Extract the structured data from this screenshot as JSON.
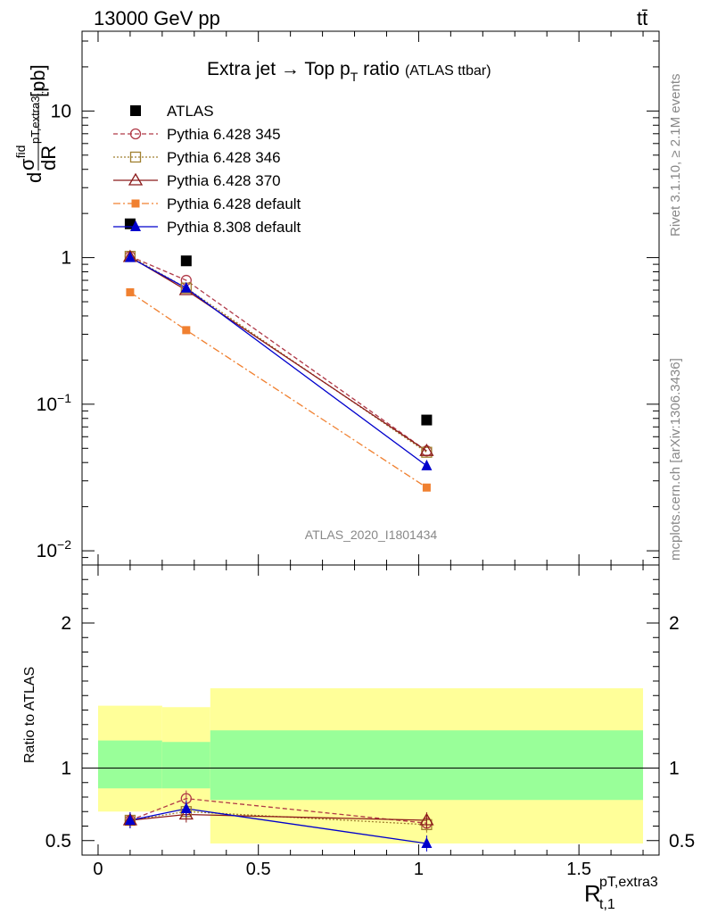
{
  "header": {
    "energy": "13000 GeV pp",
    "process": "tt̄"
  },
  "title": {
    "main": "Extra jet → Top p",
    "sub": "T",
    "rest": " ratio",
    "tag": "(ATLAS ttbar)"
  },
  "side_labels": {
    "rivet": "Rivet 3.1.10, ≥ 2.1M events",
    "mcplots": "mcplots.cern.ch [arXiv:1306.3436]"
  },
  "watermark": "ATLAS_2020_I1801434",
  "axes": {
    "ylabel_main_pre": "d",
    "ylabel_main_sigma": "σ",
    "ylabel_main_sup": "fid",
    "ylabel_main_den": "dR",
    "ylabel_main_sub": "pT,extra3",
    "ylabel_main_subsub": "t,1",
    "ylabel_main_unit": "[pb]",
    "ylabel_ratio": "Ratio to ATLAS",
    "xlabel_R": "R",
    "xlabel_sup": "pT,extra3",
    "xlabel_sub": "t,1",
    "yticks_main": [
      {
        "v": 10,
        "base": "10",
        "exp": ""
      },
      {
        "v": 1,
        "base": "1",
        "exp": ""
      },
      {
        "v": 0.1,
        "base": "10",
        "exp": "−1"
      },
      {
        "v": 0.01,
        "base": "10",
        "exp": "−2"
      }
    ],
    "yticks_ratio": [
      "0.5",
      "1",
      "2"
    ],
    "xticks": [
      "0",
      "0.5",
      "1",
      "1.5"
    ]
  },
  "legend": [
    {
      "label": "ATLAS",
      "color": "#000000",
      "marker": "square-filled",
      "dash": ""
    },
    {
      "label": "Pythia 6.428 345",
      "color": "#b03a48",
      "marker": "circle-open",
      "dash": "5,3"
    },
    {
      "label": "Pythia 6.428 346",
      "color": "#a08030",
      "marker": "square-open",
      "dash": "2,2"
    },
    {
      "label": "Pythia 6.428 370",
      "color": "#8b1a1a",
      "marker": "triangle-open",
      "dash": ""
    },
    {
      "label": "Pythia 6.428 default",
      "color": "#f08030",
      "marker": "square-filled-small",
      "dash": "8,3,2,3"
    },
    {
      "label": "Pythia 8.308 default",
      "color": "#0000cc",
      "marker": "triangle-filled",
      "dash": ""
    }
  ],
  "chart_data": {
    "type": "scatter",
    "x": [
      0.1,
      0.275,
      1.025
    ],
    "xlim": [
      -0.05,
      1.75
    ],
    "main_ylim": [
      0.008,
      35
    ],
    "main_yscale": "log",
    "ratio_ylim": [
      0.4,
      2.4
    ],
    "series": [
      {
        "name": "ATLAS",
        "values": [
          1.7,
          0.95,
          0.078
        ]
      },
      {
        "name": "Pythia 6.428 345",
        "values": [
          1.02,
          0.7,
          0.048
        ]
      },
      {
        "name": "Pythia 6.428 346",
        "values": [
          1.02,
          0.62,
          0.047
        ]
      },
      {
        "name": "Pythia 6.428 370",
        "values": [
          1.01,
          0.6,
          0.048
        ]
      },
      {
        "name": "Pythia 6.428 default",
        "values": [
          0.58,
          0.32,
          0.027
        ]
      },
      {
        "name": "Pythia 8.308 default",
        "values": [
          1.0,
          0.62,
          0.038
        ]
      }
    ],
    "ratio_series": [
      {
        "name": "Pythia 6.428 345",
        "values": [
          0.64,
          0.79,
          0.62
        ]
      },
      {
        "name": "Pythia 6.428 346",
        "values": [
          0.64,
          0.7,
          0.61
        ]
      },
      {
        "name": "Pythia 6.428 370",
        "values": [
          0.64,
          0.68,
          0.64
        ]
      },
      {
        "name": "Pythia 8.308 default",
        "values": [
          0.64,
          0.72,
          0.48
        ]
      }
    ],
    "bands": [
      {
        "x0": 0.0,
        "x1": 0.2,
        "yellow": [
          0.7,
          1.43
        ],
        "green": [
          0.86,
          1.19
        ]
      },
      {
        "x0": 0.2,
        "x1": 0.35,
        "yellow": [
          0.7,
          1.42
        ],
        "green": [
          0.86,
          1.18
        ]
      },
      {
        "x0": 0.35,
        "x1": 1.7,
        "yellow": [
          0.48,
          1.55
        ],
        "green": [
          0.78,
          1.26
        ]
      }
    ]
  }
}
